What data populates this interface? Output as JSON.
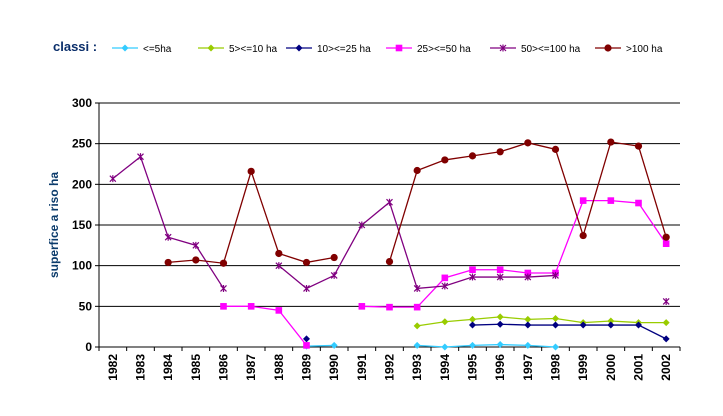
{
  "chart_data": {
    "type": "line",
    "title": "",
    "legend_title": "classi :",
    "legend_position": "top",
    "xlabel": "",
    "ylabel": "superfice a riso ha",
    "ylim": [
      0,
      300
    ],
    "yticks": [
      "0",
      "50",
      "100",
      "150",
      "200",
      "250",
      "300"
    ],
    "grid": "horizontal",
    "categories": [
      "1982",
      "1983",
      "1984",
      "1985",
      "1986",
      "1987",
      "1988",
      "1989",
      "1990",
      "1991",
      "1992",
      "1993",
      "1994",
      "1995",
      "1996",
      "1997",
      "1998",
      "1999",
      "2000",
      "2001",
      "2002"
    ],
    "series": [
      {
        "name": "<=5ha",
        "color": "#33ccff",
        "marker": "diamond",
        "values": [
          null,
          null,
          null,
          null,
          null,
          null,
          null,
          1,
          2,
          null,
          null,
          2,
          0,
          2,
          3,
          2,
          0,
          null,
          null,
          null,
          null
        ]
      },
      {
        "name": "5><=10 ha",
        "color": "#99cc00",
        "marker": "diamond",
        "values": [
          null,
          null,
          null,
          null,
          null,
          null,
          null,
          null,
          null,
          null,
          null,
          26,
          31,
          34,
          37,
          34,
          35,
          30,
          32,
          30,
          30
        ]
      },
      {
        "name": "10><=25 ha",
        "color": "#000080",
        "marker": "diamond",
        "values": [
          null,
          null,
          null,
          null,
          null,
          null,
          null,
          10,
          null,
          null,
          null,
          null,
          null,
          27,
          28,
          27,
          27,
          27,
          27,
          27,
          10
        ]
      },
      {
        "name": "25><=50 ha",
        "color": "#ff00ff",
        "marker": "square",
        "values": [
          null,
          null,
          null,
          null,
          50,
          50,
          45,
          2,
          null,
          50,
          49,
          49,
          85,
          95,
          95,
          91,
          91,
          180,
          180,
          177,
          127
        ]
      },
      {
        "name": "50><=100 ha",
        "color": "#800080",
        "marker": "star",
        "values": [
          207,
          234,
          135,
          125,
          72,
          null,
          100,
          72,
          88,
          150,
          178,
          72,
          75,
          86,
          86,
          86,
          88,
          null,
          null,
          null,
          56
        ]
      },
      {
        "name": ">100 ha",
        "color": "#800000",
        "marker": "circle",
        "values": [
          null,
          null,
          104,
          107,
          103,
          216,
          115,
          104,
          110,
          null,
          105,
          217,
          230,
          235,
          240,
          251,
          243,
          137,
          252,
          247,
          135
        ]
      }
    ]
  }
}
